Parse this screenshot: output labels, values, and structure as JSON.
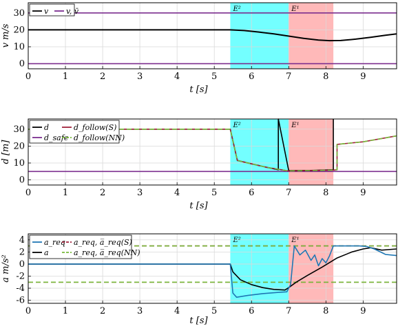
{
  "chart_data": [
    {
      "type": "line",
      "xlabel": "t [s]",
      "ylabel": "v  m/s",
      "xlim": [
        0,
        9.9
      ],
      "ylim": [
        -3,
        36
      ],
      "xticks": [
        "0",
        "1",
        "2",
        "3",
        "4",
        "5",
        "6",
        "7",
        "8",
        "9"
      ],
      "yticks": [
        "0",
        "10",
        "20",
        "30"
      ],
      "grid": true,
      "legend_position": "top-left",
      "regions": [
        {
          "label": "E²",
          "x0": 5.43,
          "x1": 7.0,
          "color": "#00ffff"
        },
        {
          "label": "E¹",
          "x0": 7.0,
          "x1": 8.2,
          "color": "#ff7f7f"
        }
      ],
      "series": [
        {
          "name": "v",
          "color": "#000000",
          "x": [
            0,
            5.43,
            5.8,
            6.2,
            6.6,
            7.0,
            7.4,
            7.8,
            8.1,
            8.4,
            8.8,
            9.2,
            9.6,
            9.9
          ],
          "y": [
            20,
            20,
            19.6,
            18.7,
            17.6,
            16.3,
            15,
            14,
            13.6,
            13.7,
            14.5,
            15.6,
            16.8,
            17.6
          ]
        },
        {
          "name": "v, v̄",
          "color": "#7b2d8e",
          "x": [
            0,
            9.9
          ],
          "y": [
            30,
            30
          ]
        },
        {
          "name": "",
          "color": "#7b2d8e",
          "x": [
            0,
            9.9
          ],
          "y": [
            0,
            0
          ]
        }
      ]
    },
    {
      "type": "line",
      "xlabel": "t [s]",
      "ylabel": "d [m]",
      "xlim": [
        0,
        9.9
      ],
      "ylim": [
        -3,
        36
      ],
      "xticks": [
        "0",
        "1",
        "2",
        "3",
        "4",
        "5",
        "6",
        "7",
        "8",
        "9"
      ],
      "yticks": [
        "0",
        "10",
        "20",
        "30"
      ],
      "grid": true,
      "legend_position": "top-left",
      "regions": [
        {
          "label": "E²",
          "x0": 5.43,
          "x1": 7.0,
          "color": "#00ffff"
        },
        {
          "label": "E¹",
          "x0": 7.0,
          "x1": 8.2,
          "color": "#ff7f7f"
        }
      ],
      "series": [
        {
          "name": "d",
          "color": "#000000",
          "x": [
            0,
            5.43,
            5.62,
            6.0,
            6.4,
            6.72,
            6.72,
            7.0,
            7.6,
            8.2,
            8.2
          ],
          "y": [
            30,
            30,
            11.5,
            9.5,
            7.5,
            6,
            36,
            5.5,
            5.6,
            6,
            36
          ]
        },
        {
          "name": "d_follow(S)",
          "color": "#a0213b",
          "x": [
            0,
            5.43,
            5.62,
            6.0,
            6.4,
            6.8,
            7.0,
            7.6,
            8.2,
            8.3,
            8.3,
            9.0,
            9.9
          ],
          "y": [
            30,
            30,
            11.5,
            9.5,
            7.5,
            6,
            5.3,
            5.5,
            5.8,
            6,
            21,
            22.5,
            26
          ]
        },
        {
          "name": "d_safe",
          "color": "#7b2d8e",
          "x": [
            0,
            9.9
          ],
          "y": [
            5,
            5
          ]
        },
        {
          "name": "d_follow(NN)",
          "color": "#78b93a",
          "dash": true,
          "x": [
            0,
            5.43,
            5.62,
            6.0,
            6.4,
            6.8,
            7.0,
            7.6,
            8.2,
            8.3,
            8.3,
            9.0,
            9.9
          ],
          "y": [
            30,
            30,
            11.5,
            9.5,
            7.5,
            6,
            5.3,
            5.5,
            5.8,
            6,
            21,
            22.5,
            26
          ]
        }
      ]
    },
    {
      "type": "line",
      "xlabel": "t [s]",
      "ylabel": "a  m/s²",
      "xlim": [
        0,
        9.9
      ],
      "ylim": [
        -6.5,
        5
      ],
      "xticks": [
        "0",
        "1",
        "2",
        "3",
        "4",
        "5",
        "6",
        "7",
        "8",
        "9"
      ],
      "yticks": [
        "-6",
        "-4",
        "-2",
        "0",
        "2",
        "4"
      ],
      "grid": true,
      "legend_position": "top-left",
      "regions": [
        {
          "label": "E²",
          "x0": 5.43,
          "x1": 7.0,
          "color": "#00ffff"
        },
        {
          "label": "E¹",
          "x0": 7.0,
          "x1": 8.2,
          "color": "#ff7f7f"
        }
      ],
      "series": [
        {
          "name": "a_req",
          "color": "#1f77b4",
          "x": [
            0,
            5.43,
            5.5,
            5.6,
            5.9,
            6.3,
            6.7,
            6.95,
            7.05,
            7.15,
            7.3,
            7.45,
            7.6,
            7.7,
            7.8,
            7.9,
            8.0,
            8.1,
            8.2,
            8.3,
            8.5,
            8.9,
            9.1,
            9.3,
            9.6,
            9.9
          ],
          "y": [
            0,
            0,
            -4.8,
            -5.5,
            -5.2,
            -4.9,
            -4.7,
            -4.6,
            -3.4,
            3,
            1.5,
            2.3,
            0.6,
            1.5,
            -0.3,
            0.9,
            0.2,
            1.4,
            3,
            3,
            3,
            3,
            2.9,
            2.5,
            1.6,
            1.4
          ]
        },
        {
          "name": "a_req, a̅_req(S)",
          "color": "#a0213b",
          "dash": true,
          "x": [
            0,
            9.9
          ],
          "y": [
            3,
            3
          ]
        },
        {
          "name": "",
          "color": "#a0213b",
          "dash": true,
          "x": [
            0,
            9.9
          ],
          "y": [
            -3,
            -3
          ]
        },
        {
          "name": "a",
          "color": "#000000",
          "x": [
            0,
            5.43,
            5.5,
            5.7,
            6.0,
            6.3,
            6.6,
            6.9,
            7.0,
            7.2,
            7.5,
            7.9,
            8.3,
            8.7,
            9.0,
            9.2,
            9.5,
            9.9
          ],
          "y": [
            0,
            0,
            -1.3,
            -2.6,
            -3.4,
            -3.9,
            -4.2,
            -4.3,
            -3.9,
            -3.0,
            -1.9,
            -0.5,
            1.0,
            2.0,
            2.5,
            2.7,
            2.3,
            2.5
          ]
        },
        {
          "name": "a_req, a̅_req(NN)",
          "color": "#78b93a",
          "dash": true,
          "x": [
            0,
            9.9
          ],
          "y": [
            3,
            3
          ]
        },
        {
          "name": "",
          "color": "#78b93a",
          "dash": true,
          "x": [
            0,
            9.9
          ],
          "y": [
            -3,
            -3
          ]
        }
      ]
    }
  ]
}
